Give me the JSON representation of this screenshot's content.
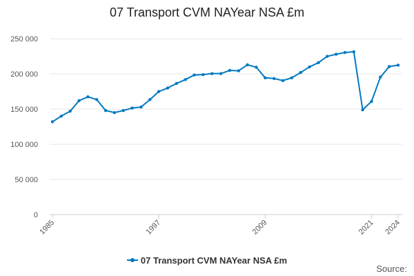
{
  "chart_data": {
    "type": "line",
    "title": "07 Transport CVM NAYear NSA £m",
    "color": "#0079c1",
    "series": [
      {
        "name": "07 Transport CVM NAYear NSA £m",
        "x": [
          1985,
          1986,
          1987,
          1988,
          1989,
          1990,
          1991,
          1992,
          1993,
          1994,
          1995,
          1996,
          1997,
          1998,
          1999,
          2000,
          2001,
          2002,
          2003,
          2004,
          2005,
          2006,
          2007,
          2008,
          2009,
          2010,
          2011,
          2012,
          2013,
          2014,
          2015,
          2016,
          2017,
          2018,
          2019,
          2020,
          2021,
          2022,
          2023,
          2024
        ],
        "values": [
          132000,
          140000,
          147000,
          162000,
          167500,
          163500,
          148000,
          145000,
          148000,
          151500,
          153000,
          163500,
          175000,
          180000,
          186500,
          192000,
          198500,
          199000,
          200500,
          200500,
          205000,
          204500,
          213000,
          209500,
          194500,
          193500,
          190500,
          194500,
          202000,
          210000,
          216000,
          225000,
          228000,
          230500,
          231500,
          149000,
          161000,
          195500,
          210500,
          212500
        ]
      }
    ],
    "x_ticks": [
      "1985",
      "1997",
      "2009",
      "2021",
      "2024"
    ],
    "x_tick_values": [
      1985,
      1997,
      2009,
      2021,
      2024
    ],
    "y_ticks": [
      "0",
      "50 000",
      "100 000",
      "150 000",
      "200 000",
      "250 000"
    ],
    "y_tick_values": [
      0,
      50000,
      100000,
      150000,
      200000,
      250000
    ],
    "ylim": [
      0,
      260000
    ],
    "xlim": [
      1985,
      2024
    ],
    "grid": "horizontal",
    "legend_position": "bottom",
    "source_label": "Source:"
  }
}
